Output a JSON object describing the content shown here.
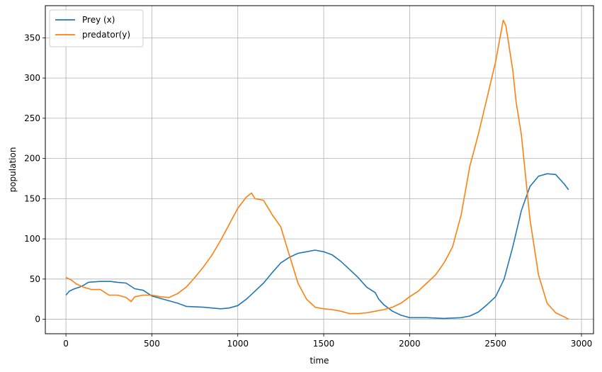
{
  "chart_data": {
    "type": "line",
    "xlabel": "time",
    "ylabel": "population",
    "xlim": [
      -120,
      3070
    ],
    "ylim": [
      -18,
      390
    ],
    "xticks": [
      0,
      500,
      1000,
      1500,
      2000,
      2500,
      3000
    ],
    "yticks": [
      0,
      50,
      100,
      150,
      200,
      250,
      300,
      350
    ],
    "grid": true,
    "legend_position": "upper-left",
    "series": [
      {
        "name": "Prey (x)",
        "color": "#1f77b4",
        "points": [
          [
            0,
            30
          ],
          [
            20,
            35
          ],
          [
            50,
            38
          ],
          [
            80,
            40
          ],
          [
            100,
            42
          ],
          [
            130,
            46
          ],
          [
            200,
            47
          ],
          [
            260,
            47
          ],
          [
            300,
            46
          ],
          [
            350,
            45
          ],
          [
            400,
            38
          ],
          [
            450,
            36
          ],
          [
            500,
            29
          ],
          [
            550,
            26
          ],
          [
            600,
            23
          ],
          [
            650,
            20
          ],
          [
            700,
            16
          ],
          [
            800,
            15
          ],
          [
            850,
            14
          ],
          [
            900,
            13
          ],
          [
            950,
            14
          ],
          [
            1000,
            17
          ],
          [
            1050,
            25
          ],
          [
            1100,
            35
          ],
          [
            1150,
            45
          ],
          [
            1200,
            58
          ],
          [
            1250,
            70
          ],
          [
            1300,
            77
          ],
          [
            1350,
            82
          ],
          [
            1400,
            84
          ],
          [
            1450,
            86
          ],
          [
            1500,
            84
          ],
          [
            1550,
            80
          ],
          [
            1600,
            72
          ],
          [
            1650,
            62
          ],
          [
            1700,
            52
          ],
          [
            1750,
            40
          ],
          [
            1800,
            33
          ],
          [
            1820,
            25
          ],
          [
            1850,
            18
          ],
          [
            1900,
            10
          ],
          [
            1950,
            5
          ],
          [
            2000,
            2
          ],
          [
            2100,
            2
          ],
          [
            2200,
            1
          ],
          [
            2300,
            2
          ],
          [
            2350,
            4
          ],
          [
            2400,
            9
          ],
          [
            2450,
            18
          ],
          [
            2500,
            28
          ],
          [
            2550,
            50
          ],
          [
            2600,
            90
          ],
          [
            2650,
            135
          ],
          [
            2700,
            165
          ],
          [
            2750,
            178
          ],
          [
            2800,
            181
          ],
          [
            2850,
            180
          ],
          [
            2900,
            168
          ],
          [
            2925,
            161
          ]
        ]
      },
      {
        "name": "predator(y)",
        "color": "#ff7f0e",
        "points": [
          [
            0,
            52
          ],
          [
            30,
            49
          ],
          [
            60,
            44
          ],
          [
            100,
            40
          ],
          [
            150,
            37
          ],
          [
            200,
            37
          ],
          [
            250,
            30
          ],
          [
            300,
            30
          ],
          [
            350,
            27
          ],
          [
            380,
            22
          ],
          [
            400,
            28
          ],
          [
            450,
            30
          ],
          [
            500,
            30
          ],
          [
            550,
            28
          ],
          [
            600,
            27
          ],
          [
            650,
            32
          ],
          [
            700,
            40
          ],
          [
            750,
            52
          ],
          [
            800,
            65
          ],
          [
            850,
            80
          ],
          [
            900,
            98
          ],
          [
            950,
            118
          ],
          [
            1000,
            138
          ],
          [
            1050,
            152
          ],
          [
            1080,
            157
          ],
          [
            1100,
            150
          ],
          [
            1150,
            148
          ],
          [
            1200,
            130
          ],
          [
            1250,
            115
          ],
          [
            1300,
            80
          ],
          [
            1350,
            45
          ],
          [
            1400,
            25
          ],
          [
            1450,
            15
          ],
          [
            1500,
            13
          ],
          [
            1550,
            12
          ],
          [
            1600,
            10
          ],
          [
            1650,
            7
          ],
          [
            1700,
            7
          ],
          [
            1750,
            8
          ],
          [
            1800,
            10
          ],
          [
            1850,
            12
          ],
          [
            1900,
            15
          ],
          [
            1950,
            20
          ],
          [
            2000,
            28
          ],
          [
            2050,
            35
          ],
          [
            2100,
            45
          ],
          [
            2150,
            55
          ],
          [
            2200,
            70
          ],
          [
            2250,
            90
          ],
          [
            2300,
            130
          ],
          [
            2350,
            190
          ],
          [
            2400,
            230
          ],
          [
            2450,
            275
          ],
          [
            2500,
            320
          ],
          [
            2530,
            355
          ],
          [
            2545,
            372
          ],
          [
            2560,
            365
          ],
          [
            2600,
            310
          ],
          [
            2620,
            270
          ],
          [
            2650,
            230
          ],
          [
            2700,
            125
          ],
          [
            2750,
            55
          ],
          [
            2800,
            20
          ],
          [
            2850,
            8
          ],
          [
            2900,
            3
          ],
          [
            2925,
            0
          ]
        ]
      }
    ]
  }
}
